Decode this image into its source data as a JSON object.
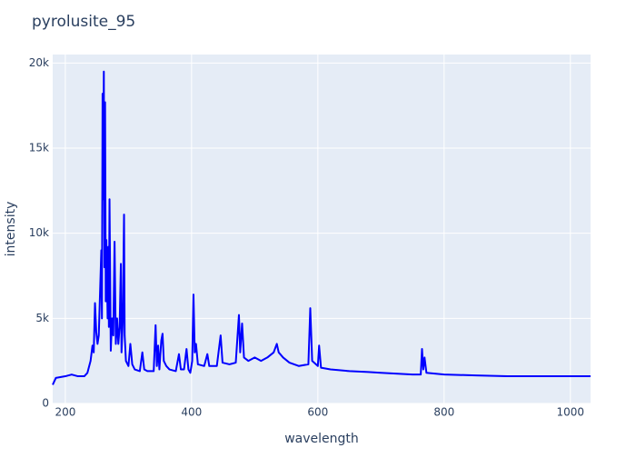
{
  "chart_data": {
    "type": "line",
    "title": "pyrolusite_95",
    "xlabel": "wavelength",
    "ylabel": "intensity",
    "x": [
      180,
      185,
      200,
      210,
      220,
      230,
      235,
      240,
      243,
      245,
      247,
      249,
      251,
      253,
      255,
      257,
      258,
      259,
      260,
      261,
      262,
      263,
      264,
      265,
      267,
      268,
      269,
      270,
      272,
      274,
      276,
      278,
      280,
      282,
      284,
      286,
      288,
      289,
      291,
      293,
      294,
      296,
      300,
      303,
      306,
      310,
      318,
      322,
      325,
      330,
      340,
      343,
      345,
      347,
      349,
      352,
      354,
      356,
      360,
      365,
      375,
      380,
      383,
      388,
      392,
      395,
      398,
      401,
      403,
      405,
      407,
      410,
      420,
      425,
      428,
      440,
      446,
      449,
      460,
      470,
      475,
      477,
      480,
      483,
      490,
      500,
      510,
      520,
      530,
      535,
      538,
      545,
      555,
      570,
      585,
      588,
      591,
      600,
      602,
      605,
      620,
      650,
      680,
      700,
      750,
      763,
      765,
      767,
      769,
      772,
      800,
      850,
      900,
      1000,
      1032
    ],
    "series": [
      {
        "name": "intensity",
        "color": "#0000ff",
        "values": [
          1100,
          1500,
          1600,
          1700,
          1600,
          1600,
          1800,
          2500,
          3400,
          3000,
          5900,
          4200,
          3500,
          4000,
          6500,
          9000,
          5000,
          18200,
          12000,
          19500,
          8000,
          17700,
          6000,
          9600,
          5000,
          9200,
          4500,
          12000,
          3100,
          5000,
          4000,
          9500,
          3500,
          5000,
          3500,
          4500,
          8200,
          3000,
          4800,
          11100,
          4000,
          2500,
          2200,
          3500,
          2300,
          2000,
          1900,
          3000,
          2000,
          1900,
          1900,
          4600,
          2200,
          3400,
          2000,
          3700,
          4100,
          2500,
          2200,
          2000,
          1900,
          2900,
          2000,
          2000,
          3200,
          2000,
          1800,
          2500,
          6400,
          3000,
          3500,
          2300,
          2200,
          2900,
          2200,
          2200,
          4000,
          2400,
          2300,
          2400,
          5200,
          3000,
          4700,
          2700,
          2500,
          2700,
          2500,
          2700,
          3000,
          3500,
          3000,
          2700,
          2400,
          2200,
          2300,
          5600,
          2500,
          2200,
          3400,
          2100,
          2000,
          1900,
          1850,
          1800,
          1700,
          1700,
          3200,
          2000,
          2700,
          1800,
          1700,
          1650,
          1600,
          1600,
          1600
        ]
      }
    ],
    "xlim": [
      180,
      1032
    ],
    "xticks": [
      200,
      400,
      600,
      800,
      1000
    ],
    "ylim": [
      0,
      20500
    ],
    "yticks": [
      0,
      {
        "value": 5000,
        "label": "5k"
      },
      {
        "value": 10000,
        "label": "10k"
      },
      {
        "value": 15000,
        "label": "15k"
      },
      {
        "value": 20000,
        "label": "20k"
      }
    ],
    "grid": true
  }
}
